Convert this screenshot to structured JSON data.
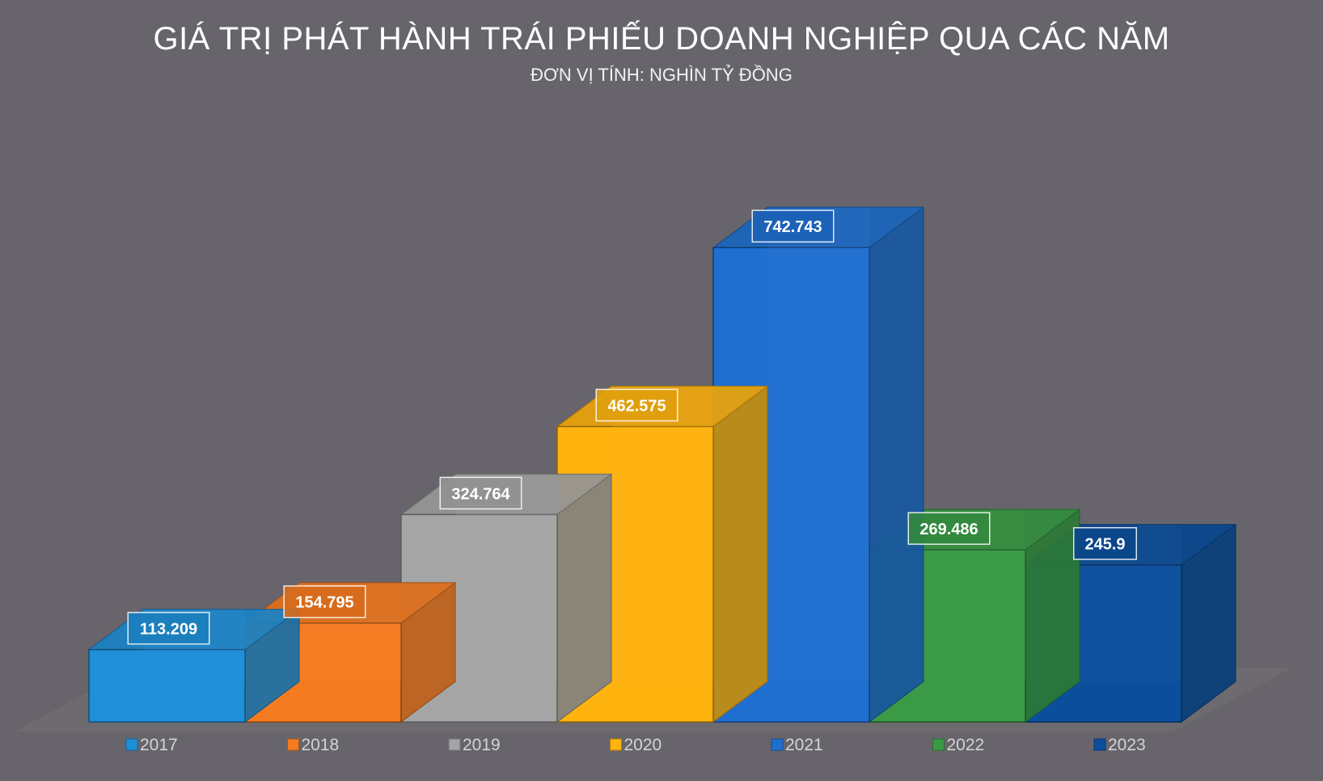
{
  "title": "GIÁ TRỊ PHÁT HÀNH TRÁI PHIẾU DOANH NGHIỆP QUA CÁC NĂM",
  "subtitle": "ĐƠN VỊ TÍNH: NGHÌN TỶ ĐỒNG",
  "chart_data": {
    "type": "bar",
    "style": "3d-column",
    "categories": [
      "2017",
      "2018",
      "2019",
      "2020",
      "2021",
      "2022",
      "2023"
    ],
    "values": [
      113.209,
      154.795,
      324.764,
      462.575,
      742.743,
      269.486,
      245.9
    ],
    "value_labels": [
      "113.209",
      "154.795",
      "324.764",
      "462.575",
      "742.743",
      "269.486",
      "245.9"
    ],
    "colors": [
      "#1f8fd8",
      "#f47b20",
      "#a5a5a5",
      "#ffb30f",
      "#1f6fd0",
      "#3a9a45",
      "#0b4f9c"
    ],
    "ylim": [
      0,
      800
    ],
    "grid": false,
    "legend_position": "bottom",
    "xlabel": "",
    "ylabel": ""
  }
}
